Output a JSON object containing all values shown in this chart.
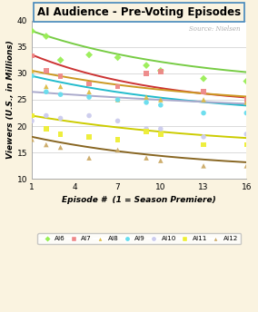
{
  "title": "AI Audience - Pre-Voting Episodes",
  "source_text": "Source: Nielsen",
  "xlabel": "Episode #  (1 = Season Premiere)",
  "ylabel": "Viewers (U.S., in Millions)",
  "xlim": [
    1,
    16
  ],
  "ylim": [
    10,
    40
  ],
  "xticks": [
    1,
    4,
    7,
    10,
    13,
    16
  ],
  "yticks": [
    10,
    15,
    20,
    25,
    30,
    35,
    40
  ],
  "background_color": "#faf3e0",
  "plot_bg_color": "#ffffff",
  "seasons": [
    "AI6",
    "AI7",
    "AI8",
    "AI9",
    "AI10",
    "AI11",
    "AI12"
  ],
  "line_colors": [
    "#77cc44",
    "#cc3333",
    "#cc9922",
    "#22bbcc",
    "#aaaacc",
    "#cccc00",
    "#886622"
  ],
  "scatter_colors": [
    "#99ee55",
    "#ee8888",
    "#ddbb44",
    "#66ddee",
    "#ccccee",
    "#eeee33",
    "#ccaa66"
  ],
  "scatter_markers": [
    "D",
    "s",
    "^",
    "o",
    "o",
    "s",
    "^"
  ],
  "curve_params": [
    {
      "a": 38.0,
      "b": 0.09,
      "c": 27.5
    },
    {
      "a": 33.5,
      "b": 0.11,
      "c": 23.5
    },
    {
      "a": 30.5,
      "b": 0.08,
      "c": 23.5
    },
    {
      "a": 29.5,
      "b": 0.08,
      "c": 21.5
    },
    {
      "a": 26.5,
      "b": 0.04,
      "c": 21.5
    },
    {
      "a": 22.0,
      "b": 0.07,
      "c": 15.5
    },
    {
      "a": 18.0,
      "b": 0.09,
      "c": 11.5
    }
  ],
  "scatter_data": {
    "AI6": [
      [
        1,
        38.0
      ],
      [
        2,
        37.0
      ],
      [
        3,
        32.5
      ],
      [
        5,
        33.5
      ],
      [
        7,
        33.0
      ],
      [
        9,
        31.5
      ],
      [
        10,
        30.5
      ],
      [
        13,
        29.0
      ],
      [
        16,
        28.5
      ]
    ],
    "AI7": [
      [
        1,
        33.3
      ],
      [
        2,
        30.5
      ],
      [
        3,
        29.5
      ],
      [
        5,
        28.0
      ],
      [
        7,
        27.5
      ],
      [
        9,
        30.0
      ],
      [
        10,
        30.3
      ],
      [
        13,
        26.5
      ],
      [
        16,
        25.0
      ]
    ],
    "AI8": [
      [
        1,
        30.5
      ],
      [
        2,
        27.5
      ],
      [
        3,
        27.5
      ],
      [
        5,
        26.5
      ],
      [
        7,
        25.0
      ],
      [
        9,
        25.5
      ],
      [
        10,
        25.0
      ],
      [
        13,
        25.0
      ],
      [
        16,
        24.5
      ]
    ],
    "AI9": [
      [
        1,
        29.5
      ],
      [
        2,
        26.5
      ],
      [
        3,
        26.0
      ],
      [
        5,
        25.5
      ],
      [
        7,
        25.0
      ],
      [
        9,
        24.5
      ],
      [
        10,
        24.0
      ],
      [
        13,
        22.5
      ],
      [
        16,
        22.5
      ]
    ],
    "AI10": [
      [
        1,
        21.0
      ],
      [
        2,
        22.0
      ],
      [
        3,
        21.5
      ],
      [
        5,
        22.0
      ],
      [
        7,
        21.0
      ],
      [
        9,
        19.5
      ],
      [
        10,
        19.5
      ],
      [
        13,
        18.0
      ],
      [
        16,
        18.5
      ]
    ],
    "AI11": [
      [
        1,
        22.0
      ],
      [
        2,
        19.5
      ],
      [
        3,
        18.5
      ],
      [
        5,
        18.0
      ],
      [
        7,
        17.5
      ],
      [
        9,
        19.0
      ],
      [
        10,
        18.5
      ],
      [
        13,
        16.5
      ],
      [
        16,
        16.5
      ]
    ],
    "AI12": [
      [
        1,
        17.5
      ],
      [
        2,
        16.5
      ],
      [
        3,
        16.0
      ],
      [
        5,
        14.0
      ],
      [
        7,
        15.5
      ],
      [
        9,
        14.0
      ],
      [
        10,
        13.5
      ],
      [
        13,
        12.5
      ],
      [
        16,
        12.5
      ]
    ]
  }
}
